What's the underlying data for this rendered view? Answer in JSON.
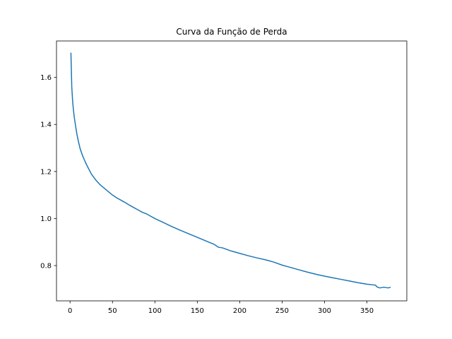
{
  "chart_data": {
    "type": "line",
    "title": "Curva da Função de Perda",
    "xlabel": "",
    "ylabel": "",
    "xlim": [
      -16,
      397
    ],
    "ylim": [
      0.65,
      1.755
    ],
    "x_ticks": [
      0,
      50,
      100,
      150,
      200,
      250,
      300,
      350
    ],
    "y_ticks": [
      0.8,
      1.0,
      1.2,
      1.4,
      1.6
    ],
    "x_tick_labels": [
      "0",
      "50",
      "100",
      "150",
      "200",
      "250",
      "300",
      "350"
    ],
    "y_tick_labels": [
      "0.8",
      "1.0",
      "1.2",
      "1.4",
      "1.6"
    ],
    "grid": false,
    "series": [
      {
        "color": "#1f77b4",
        "x": [
          1,
          2,
          3,
          4,
          5,
          6,
          8,
          10,
          12,
          15,
          18,
          20,
          25,
          30,
          35,
          40,
          45,
          50,
          55,
          60,
          65,
          70,
          75,
          80,
          85,
          90,
          95,
          100,
          110,
          120,
          130,
          140,
          150,
          160,
          170,
          175,
          180,
          190,
          200,
          210,
          220,
          230,
          235,
          240,
          250,
          255,
          260,
          270,
          280,
          290,
          300,
          310,
          320,
          330,
          340,
          350,
          360,
          362,
          365,
          370,
          375,
          378
        ],
        "y": [
          1.705,
          1.56,
          1.5,
          1.46,
          1.43,
          1.405,
          1.36,
          1.325,
          1.295,
          1.265,
          1.24,
          1.225,
          1.19,
          1.165,
          1.145,
          1.13,
          1.115,
          1.1,
          1.088,
          1.078,
          1.068,
          1.057,
          1.047,
          1.037,
          1.027,
          1.02,
          1.01,
          1.0,
          0.983,
          0.966,
          0.95,
          0.935,
          0.92,
          0.905,
          0.89,
          0.878,
          0.875,
          0.862,
          0.852,
          0.842,
          0.833,
          0.825,
          0.82,
          0.815,
          0.802,
          0.797,
          0.792,
          0.782,
          0.772,
          0.763,
          0.755,
          0.748,
          0.741,
          0.734,
          0.727,
          0.721,
          0.717,
          0.709,
          0.705,
          0.708,
          0.705,
          0.708
        ]
      }
    ]
  }
}
